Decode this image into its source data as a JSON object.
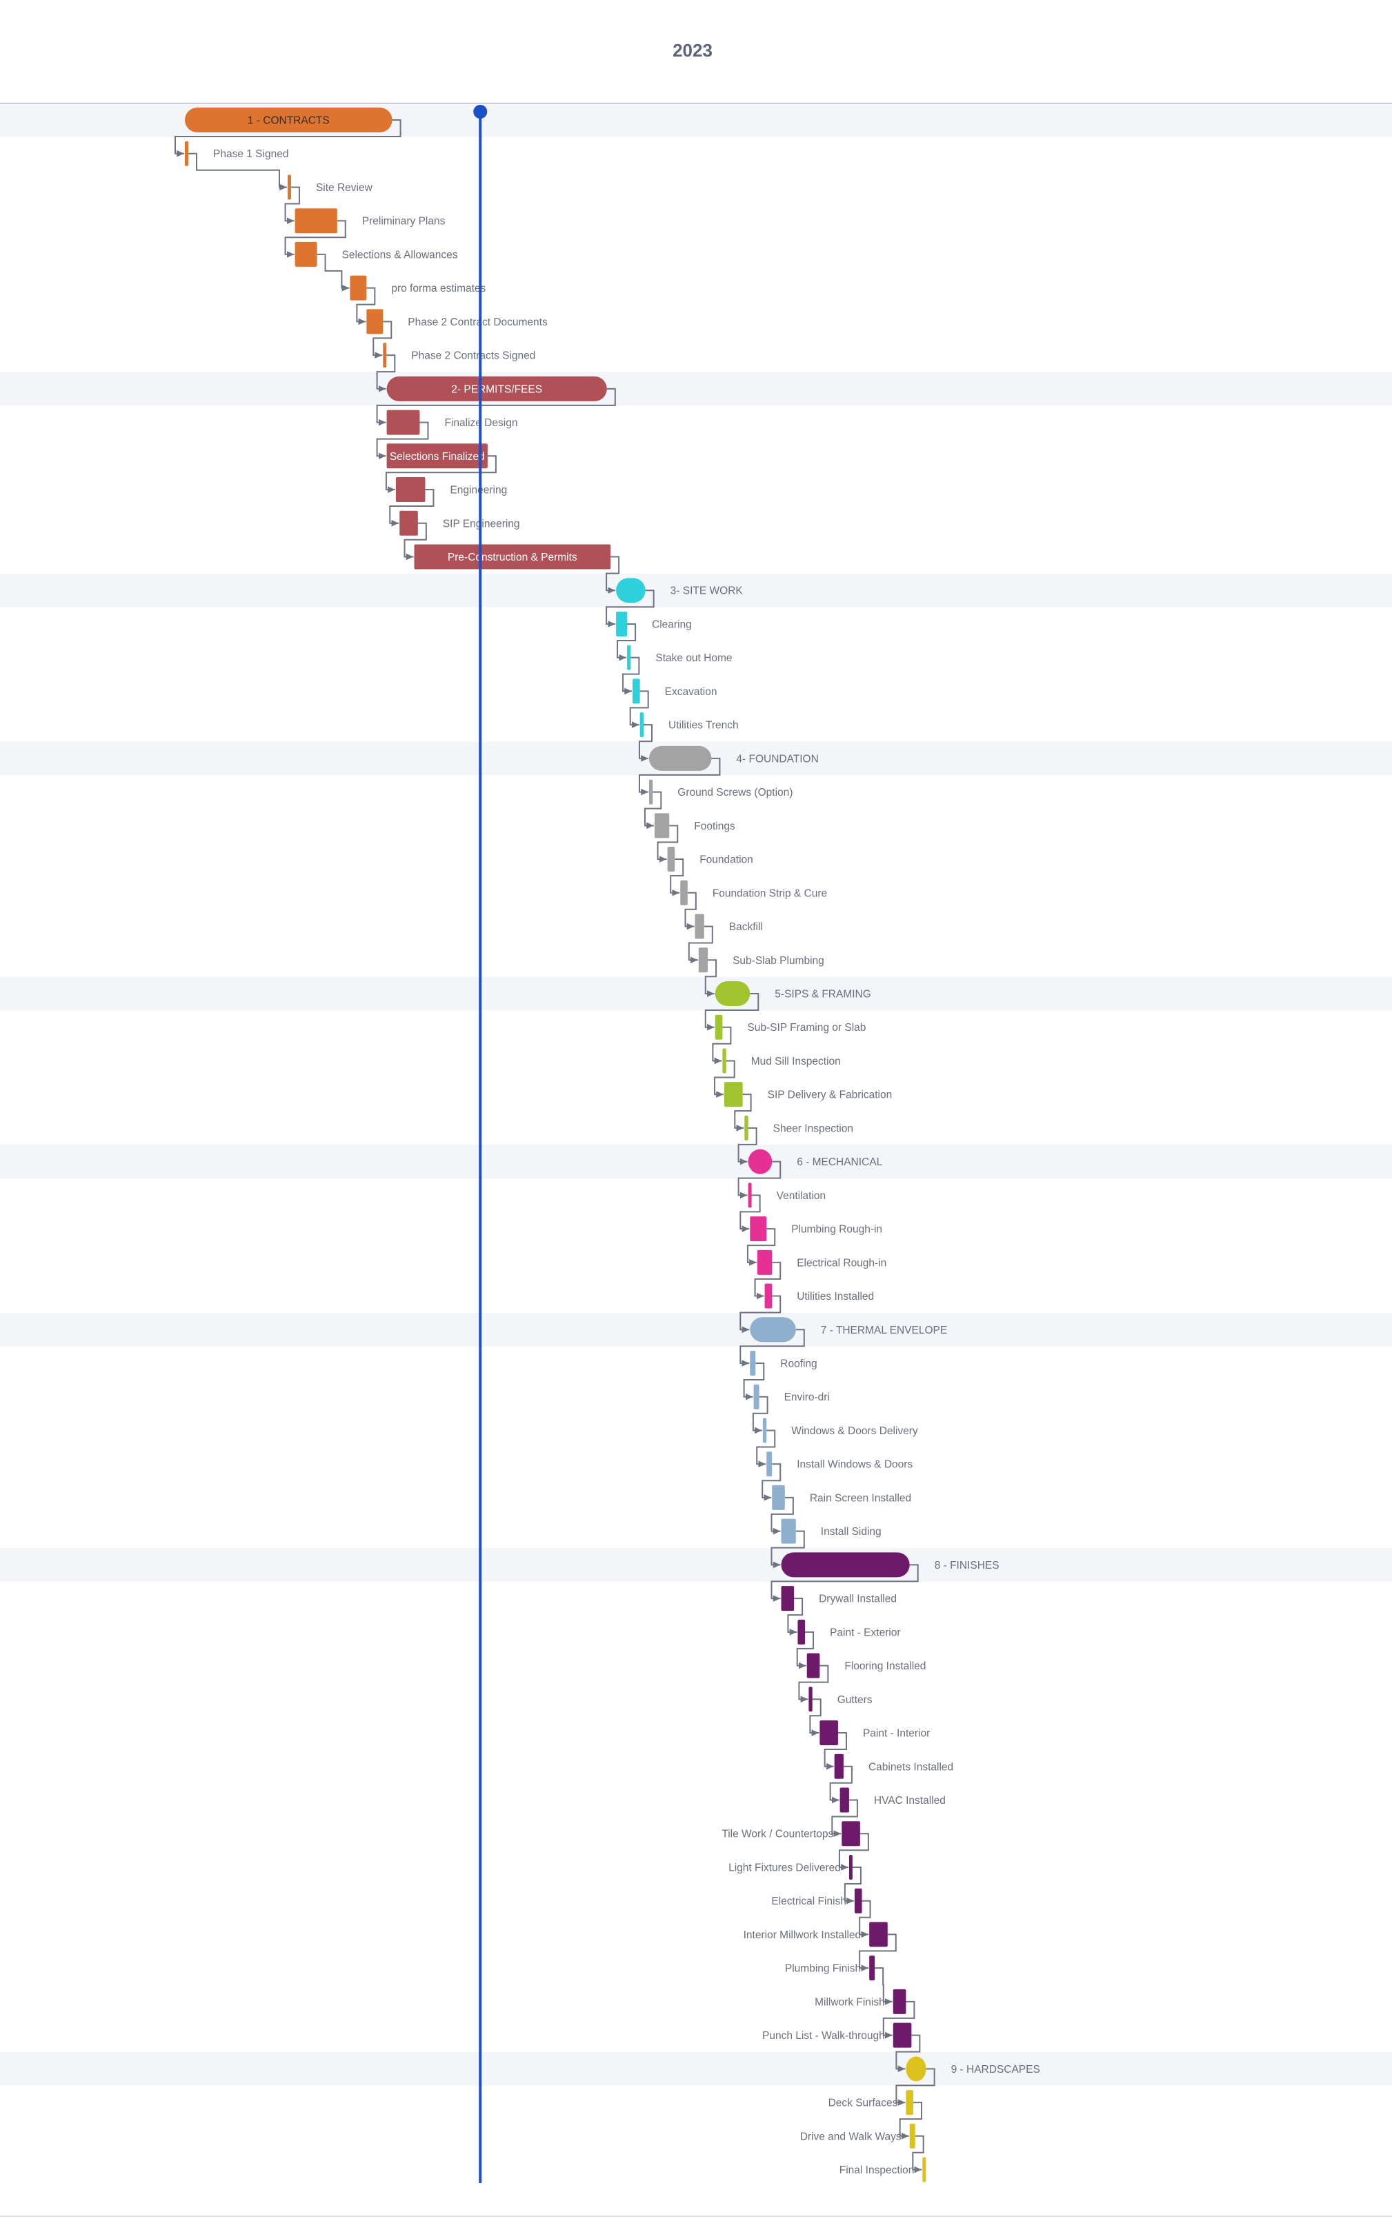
{
  "header": {
    "year": "2023"
  },
  "colors": {
    "band": "#f4f5f8",
    "connector": "#6e7382",
    "today_line": "#1a4fc7",
    "label_text": "#6b6f7a"
  },
  "chart_data": {
    "type": "gantt",
    "title": "2023",
    "x_unit": "day of year (approximate)",
    "today": 205,
    "groups": [
      {
        "name": "1 - CONTRACTS",
        "color": "#dd7530",
        "start": 44,
        "end": 157,
        "tasks": [
          {
            "name": "Phase 1 Signed",
            "start": 44,
            "end": 45
          },
          {
            "name": "Site Review",
            "start": 100,
            "end": 101
          },
          {
            "name": "Preliminary Plans",
            "start": 104,
            "end": 127
          },
          {
            "name": "Selections & Allowances",
            "start": 104,
            "end": 116
          },
          {
            "name": "pro forma estimates",
            "start": 134,
            "end": 143
          },
          {
            "name": "Phase 2 Contract Documents",
            "start": 143,
            "end": 152
          },
          {
            "name": "Phase 2 Contracts Signed",
            "start": 152,
            "end": 153
          }
        ]
      },
      {
        "name": "2- PERMITS/FEES",
        "color": "#b05158",
        "start": 154,
        "end": 274,
        "tasks": [
          {
            "name": "Finalize Design",
            "start": 154,
            "end": 172
          },
          {
            "name": "Selections Finalized",
            "start": 154,
            "end": 209,
            "label_inside": true
          },
          {
            "name": "Engineering",
            "start": 159,
            "end": 175
          },
          {
            "name": "SIP Engineering",
            "start": 161,
            "end": 171
          },
          {
            "name": "Pre-Construction & Permits",
            "start": 169,
            "end": 276,
            "label_inside": true
          }
        ]
      },
      {
        "name": "3- SITE WORK",
        "color": "#2ed0db",
        "start": 279,
        "end": 295,
        "tasks": [
          {
            "name": "Clearing",
            "start": 279,
            "end": 285
          },
          {
            "name": "Stake out Home",
            "start": 285,
            "end": 287
          },
          {
            "name": "Excavation",
            "start": 288,
            "end": 292
          },
          {
            "name": "Utilities Trench",
            "start": 292,
            "end": 294
          }
        ]
      },
      {
        "name": "4- FOUNDATION",
        "color": "#a3a3a3",
        "start": 297,
        "end": 331,
        "tasks": [
          {
            "name": "Ground Screws (Option)",
            "start": 297,
            "end": 299
          },
          {
            "name": "Footings",
            "start": 300,
            "end": 308
          },
          {
            "name": "Foundation",
            "start": 307,
            "end": 311
          },
          {
            "name": "Foundation Strip & Cure",
            "start": 314,
            "end": 318
          },
          {
            "name": "Backfill",
            "start": 322,
            "end": 327
          },
          {
            "name": "Sub-Slab Plumbing",
            "start": 324,
            "end": 329
          }
        ]
      },
      {
        "name": "5-SIPS & FRAMING",
        "color": "#a0c42e",
        "start": 333,
        "end": 352,
        "tasks": [
          {
            "name": "Sub-SIP Framing or Slab",
            "start": 333,
            "end": 337
          },
          {
            "name": "Mud Sill Inspection",
            "start": 337,
            "end": 339
          },
          {
            "name": "SIP Delivery & Fabrication",
            "start": 338,
            "end": 348
          },
          {
            "name": "Sheer Inspection",
            "start": 349,
            "end": 351
          }
        ]
      },
      {
        "name": "6 - MECHANICAL",
        "color": "#e63096",
        "start": 351,
        "end": 364,
        "tasks": [
          {
            "name": "Ventilation",
            "start": 351,
            "end": 352
          },
          {
            "name": "Plumbing Rough-in",
            "start": 352,
            "end": 361
          },
          {
            "name": "Electrical Rough-in",
            "start": 356,
            "end": 364
          },
          {
            "name": "Utilities Installed",
            "start": 360,
            "end": 364
          }
        ]
      },
      {
        "name": "7 - THERMAL ENVELOPE",
        "color": "#8eb0ce",
        "start": 352,
        "end": 377,
        "tasks": [
          {
            "name": "Roofing",
            "start": 352,
            "end": 355
          },
          {
            "name": "Enviro-dri",
            "start": 354,
            "end": 357
          },
          {
            "name": "Windows & Doors Delivery",
            "start": 359,
            "end": 361
          },
          {
            "name": "Install Windows & Doors",
            "start": 361,
            "end": 364
          },
          {
            "name": "Rain Screen Installed",
            "start": 364,
            "end": 371
          },
          {
            "name": "Install Siding",
            "start": 369,
            "end": 377
          }
        ]
      },
      {
        "name": "8 - FINISHES",
        "color": "#6e1a6a",
        "start": 369,
        "end": 439,
        "tasks": [
          {
            "name": "Drywall Installed",
            "start": 369,
            "end": 376
          },
          {
            "name": "Paint - Exterior",
            "start": 378,
            "end": 382
          },
          {
            "name": "Flooring Installed",
            "start": 383,
            "end": 390
          },
          {
            "name": "Gutters",
            "start": 384,
            "end": 386
          },
          {
            "name": "Paint - Interior",
            "start": 390,
            "end": 400
          },
          {
            "name": "Cabinets Installed",
            "start": 398,
            "end": 403
          },
          {
            "name": "HVAC Installed",
            "start": 401,
            "end": 406
          },
          {
            "name": "Tile Work / Countertops",
            "start": 402,
            "end": 412
          },
          {
            "name": "Light Fixtures Delivered",
            "start": 406,
            "end": 407
          },
          {
            "name": "Electrical Finish",
            "start": 409,
            "end": 413
          },
          {
            "name": "Interior Millwork Installed",
            "start": 417,
            "end": 427
          },
          {
            "name": "Plumbing Finish",
            "start": 417,
            "end": 420
          },
          {
            "name": "Millwork Finish",
            "start": 430,
            "end": 437
          },
          {
            "name": "Punch List - Walk-through",
            "start": 430,
            "end": 440
          }
        ]
      },
      {
        "name": "9 - HARDSCAPES",
        "color": "#dcc21c",
        "start": 437,
        "end": 448,
        "tasks": [
          {
            "name": "Deck Surfaces",
            "start": 437,
            "end": 441
          },
          {
            "name": "Drive and Walk Ways",
            "start": 439,
            "end": 442
          },
          {
            "name": "Final Inspection",
            "start": 446,
            "end": 447
          }
        ]
      }
    ]
  }
}
